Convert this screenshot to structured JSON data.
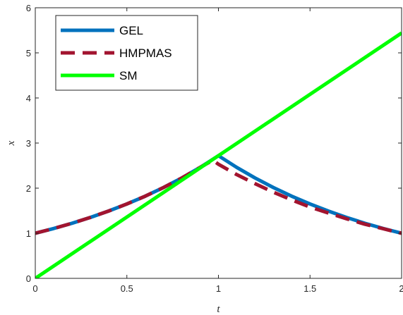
{
  "chart_data": {
    "type": "line",
    "xlabel": "t",
    "ylabel": "x",
    "xlim": [
      0,
      2
    ],
    "ylim": [
      0,
      6
    ],
    "x_ticks": [
      0,
      0.5,
      1,
      1.5,
      2
    ],
    "x_tick_labels": [
      "0",
      "0.5",
      "1",
      "1.5",
      "2"
    ],
    "y_ticks": [
      0,
      1,
      2,
      3,
      4,
      5,
      6
    ],
    "y_tick_labels": [
      "0",
      "1",
      "2",
      "3",
      "4",
      "5",
      "6"
    ],
    "grid": false,
    "legend_position": "top-left",
    "series": [
      {
        "name": "GEL",
        "color": "#0072BD",
        "style": "solid",
        "x": [
          0,
          0.1,
          0.2,
          0.3,
          0.4,
          0.5,
          0.6,
          0.7,
          0.8,
          0.9,
          1.0,
          1.1,
          1.2,
          1.3,
          1.4,
          1.5,
          1.6,
          1.7,
          1.8,
          1.9,
          2.0
        ],
        "y": [
          1.0,
          1.105,
          1.221,
          1.35,
          1.492,
          1.649,
          1.822,
          2.014,
          2.226,
          2.46,
          2.72,
          2.46,
          2.226,
          2.014,
          1.822,
          1.649,
          1.492,
          1.35,
          1.221,
          1.105,
          1.0
        ]
      },
      {
        "name": "HMPMAS",
        "color": "#A2142F",
        "style": "dashed",
        "x": [
          0,
          0.1,
          0.2,
          0.3,
          0.4,
          0.5,
          0.6,
          0.7,
          0.8,
          0.9,
          0.97,
          1.0,
          1.1,
          1.2,
          1.3,
          1.4,
          1.5,
          1.6,
          1.7,
          1.8,
          1.9,
          2.0
        ],
        "y": [
          1.0,
          1.105,
          1.221,
          1.35,
          1.492,
          1.649,
          1.822,
          2.014,
          2.226,
          2.46,
          2.62,
          2.53,
          2.3,
          2.1,
          1.91,
          1.74,
          1.58,
          1.45,
          1.32,
          1.2,
          1.1,
          1.0
        ]
      },
      {
        "name": "SM",
        "color": "#00FF00",
        "style": "solid",
        "x": [
          0,
          2
        ],
        "y": [
          0,
          5.44
        ]
      }
    ]
  }
}
